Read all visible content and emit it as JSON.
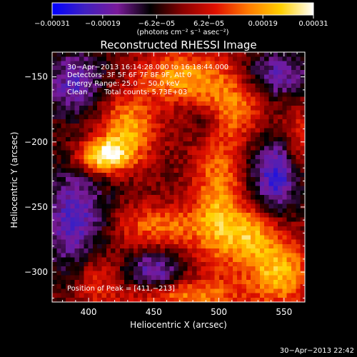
{
  "chart_data": {
    "type": "heatmap",
    "title": "Reconstructed RHESSI Image",
    "xlabel": "Heliocentric X (arcsec)",
    "ylabel": "Heliocentric Y (arcsec)",
    "xlim": [
      372,
      566
    ],
    "ylim": [
      -323,
      -131
    ],
    "x_ticks": [
      400,
      450,
      500,
      550
    ],
    "x_tick_labels": [
      "400",
      "450",
      "500",
      "550"
    ],
    "y_ticks": [
      -150,
      -200,
      -250,
      -300
    ],
    "y_tick_labels": [
      "−150",
      "−200",
      "−250",
      "−300"
    ],
    "colorbar": {
      "range": [
        -0.00031,
        0.00031
      ],
      "ticks": [
        -0.00031,
        -0.00019,
        -6.2e-05,
        6.2e-05,
        0.00019,
        0.00031
      ],
      "tick_labels": [
        "−0.00031",
        "−0.00019",
        "−6.2e−05",
        "6.2e−05",
        "0.00019",
        "0.00031"
      ],
      "units_label": "(photons cm⁻² s⁻¹ asec⁻²)",
      "colormap_stops": [
        "#0000ff",
        "#4020c0",
        "#7a1a9a",
        "#000000",
        "#8a0000",
        "#e01000",
        "#ff7a00",
        "#ffd000",
        "#ffffff"
      ]
    },
    "annotations": {
      "time_range": "30−Apr−2013 16:14:28.000 to 16:18:44.000",
      "detectors": "Detectors: 3F 5F 6F 7F 8F 9F, Att 0",
      "energy": "Energy Range: 25.0 − 50.0 keV",
      "method": "Clean",
      "total_counts": "Total counts: 5.73E+03",
      "peak": "Position of Peak = [411,−213]"
    },
    "peak": {
      "x": 411,
      "y": -213
    },
    "timestamp": "30−Apr−2013 22:42",
    "sources": [
      {
        "x": 411,
        "y": -211,
        "amp": 0.00031,
        "sx": 14,
        "sy": 9
      },
      {
        "x": 430,
        "y": -190,
        "amp": 0.00022,
        "sx": 16,
        "sy": 18
      },
      {
        "x": 470,
        "y": -150,
        "amp": 0.00021,
        "sx": 22,
        "sy": 14
      },
      {
        "x": 515,
        "y": -165,
        "amp": 0.00019,
        "sx": 18,
        "sy": 20
      },
      {
        "x": 500,
        "y": -245,
        "amp": 0.0002,
        "sx": 14,
        "sy": 40
      },
      {
        "x": 455,
        "y": -265,
        "amp": 0.00017,
        "sx": 26,
        "sy": 12
      },
      {
        "x": 545,
        "y": -300,
        "amp": 0.00024,
        "sx": 18,
        "sy": 18
      },
      {
        "x": 525,
        "y": -270,
        "amp": 0.00018,
        "sx": 14,
        "sy": 14
      },
      {
        "x": 470,
        "y": -318,
        "amp": 0.00018,
        "sx": 30,
        "sy": 8
      },
      {
        "x": 405,
        "y": -305,
        "amp": 0.00013,
        "sx": 12,
        "sy": 16
      },
      {
        "x": 560,
        "y": -200,
        "amp": 0.00012,
        "sx": 8,
        "sy": 25
      },
      {
        "x": 390,
        "y": -155,
        "amp": -0.00018,
        "sx": 16,
        "sy": 18
      },
      {
        "x": 390,
        "y": -260,
        "amp": -0.0002,
        "sx": 18,
        "sy": 30
      },
      {
        "x": 540,
        "y": -150,
        "amp": -0.0002,
        "sx": 22,
        "sy": 14
      },
      {
        "x": 545,
        "y": -225,
        "amp": -0.00024,
        "sx": 14,
        "sy": 20
      },
      {
        "x": 450,
        "y": -300,
        "amp": -0.00018,
        "sx": 14,
        "sy": 12
      },
      {
        "x": 490,
        "y": -185,
        "amp": -8e-05,
        "sx": 10,
        "sy": 10
      }
    ]
  }
}
